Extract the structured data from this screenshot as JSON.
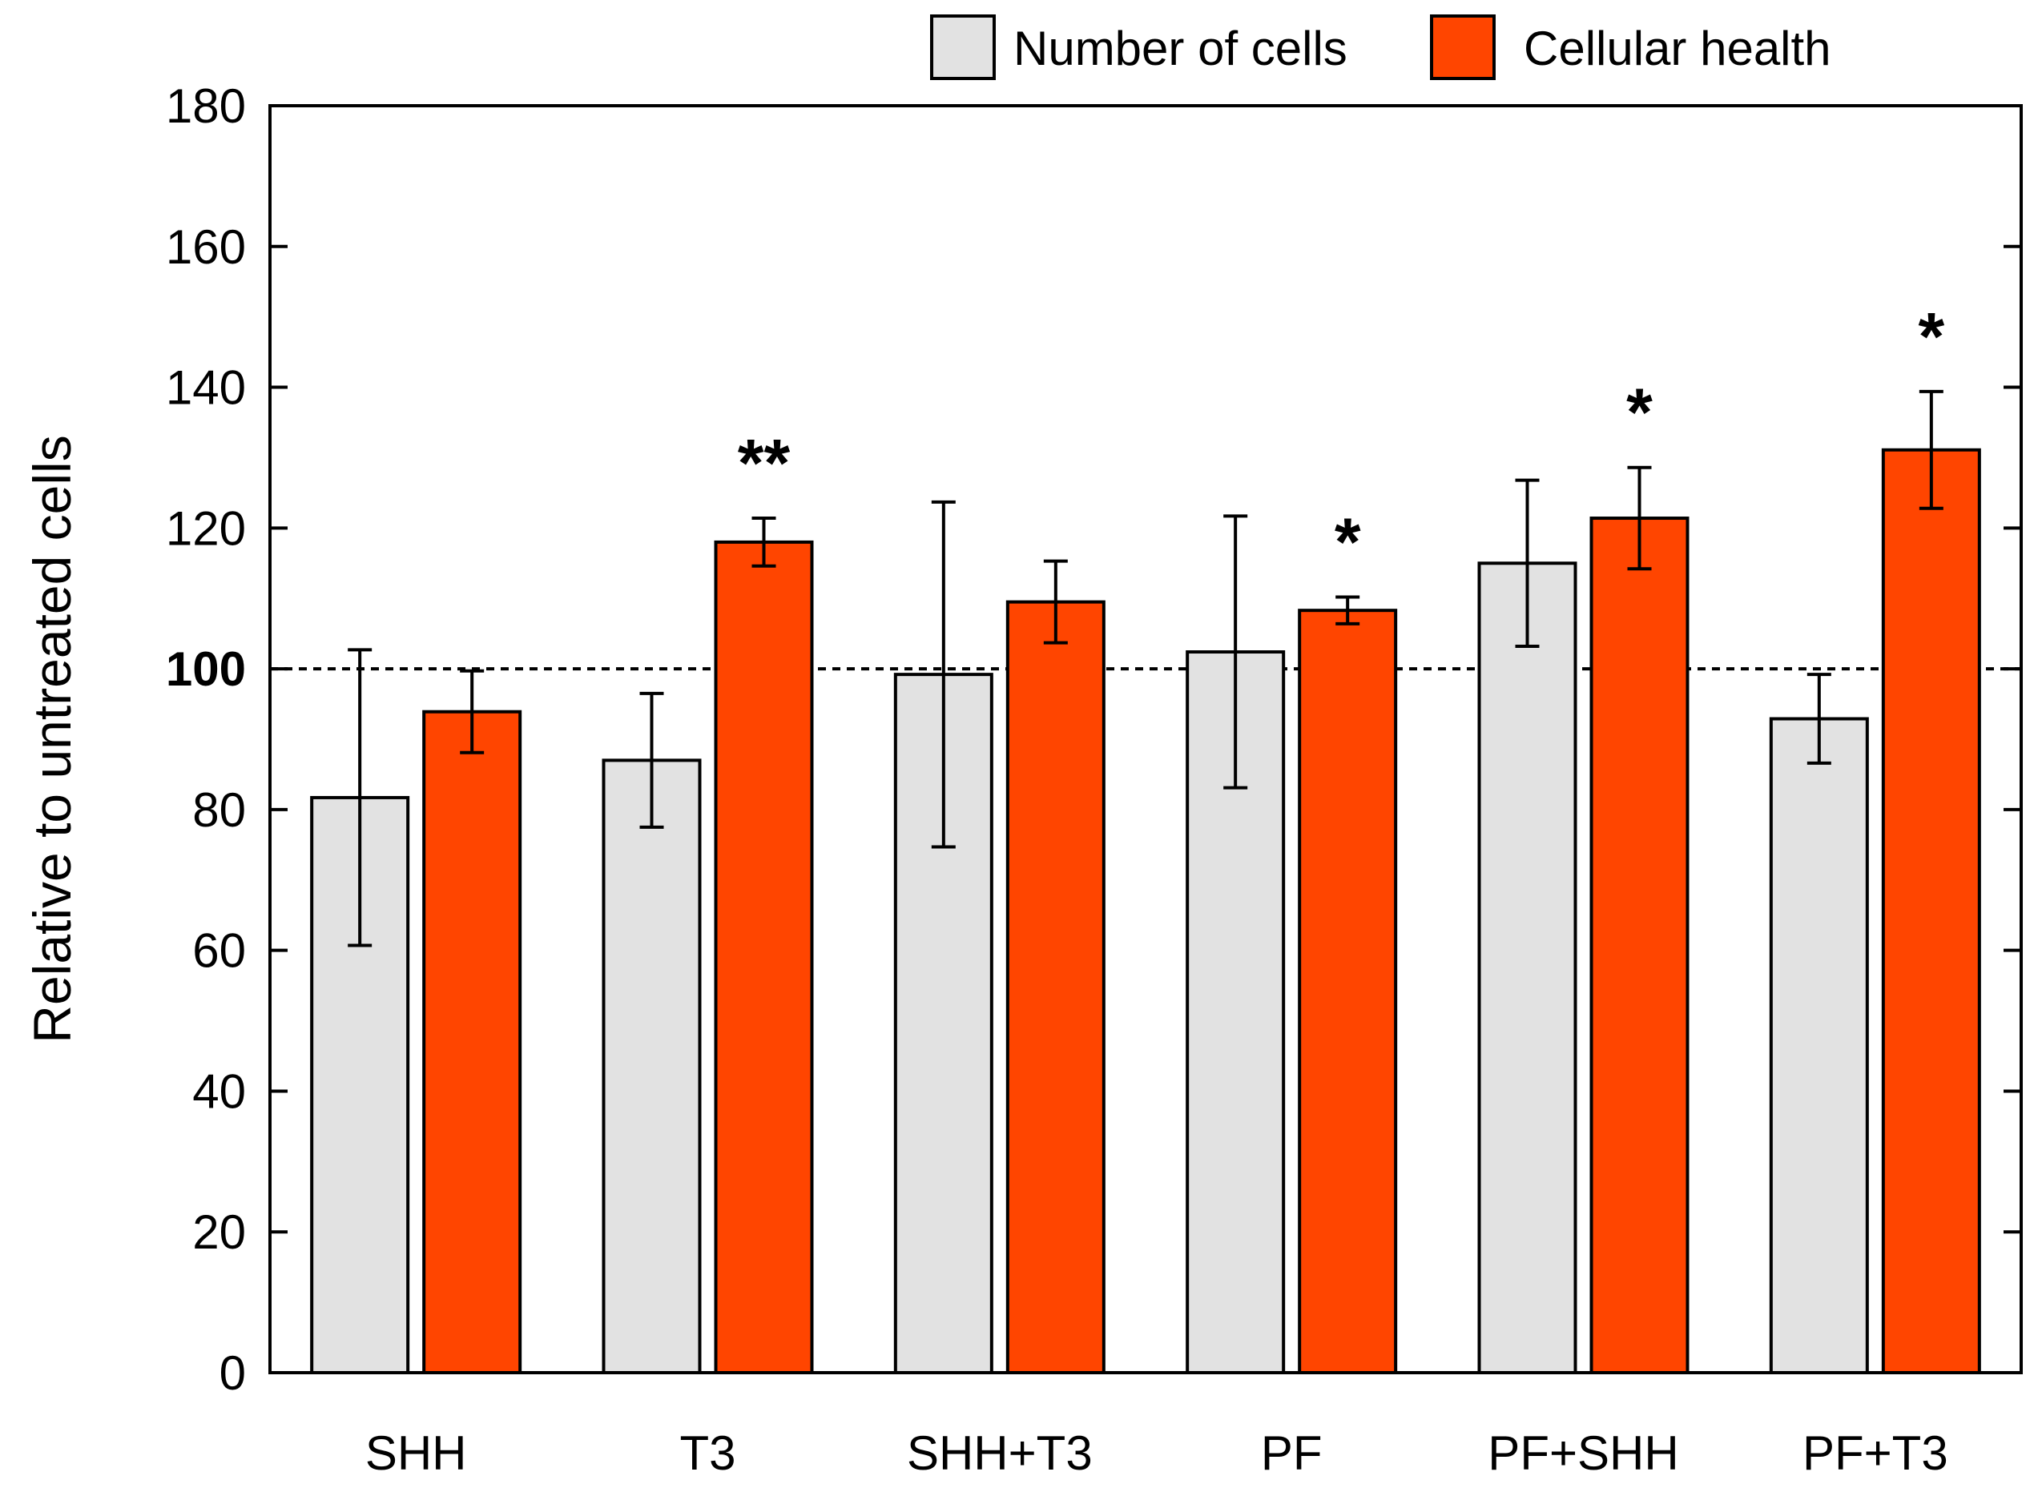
{
  "colors": {
    "number_of_cells": "#e2e2e2",
    "cellular_health": "#ff4500",
    "axis": "#000000"
  },
  "chart_data": {
    "type": "bar",
    "title": "",
    "xlabel": "",
    "ylabel": "Relative to untreated cells",
    "ylim": [
      0,
      180
    ],
    "yticks": [
      "0",
      "20",
      "40",
      "60",
      "80",
      "100",
      "120",
      "140",
      "160",
      "180"
    ],
    "bold_tick": "100",
    "reference_line": 100,
    "legend_position": "top-right",
    "categories": [
      "SHH",
      "T3",
      "SHH+T3",
      "PF",
      "PF+SHH",
      "PF+T3"
    ],
    "series": [
      {
        "name": "Number of cells",
        "values": [
          81.7,
          87.0,
          99.2,
          102.4,
          115.0,
          92.9
        ],
        "errors": [
          21.0,
          9.5,
          24.5,
          19.3,
          11.8,
          6.3
        ]
      },
      {
        "name": "Cellular health",
        "values": [
          93.9,
          118.0,
          109.5,
          108.3,
          121.4,
          131.1
        ],
        "errors": [
          5.8,
          3.4,
          5.8,
          1.9,
          7.2,
          8.3
        ]
      }
    ],
    "significance": [
      "",
      "**",
      "",
      "*",
      "*",
      "*"
    ]
  }
}
